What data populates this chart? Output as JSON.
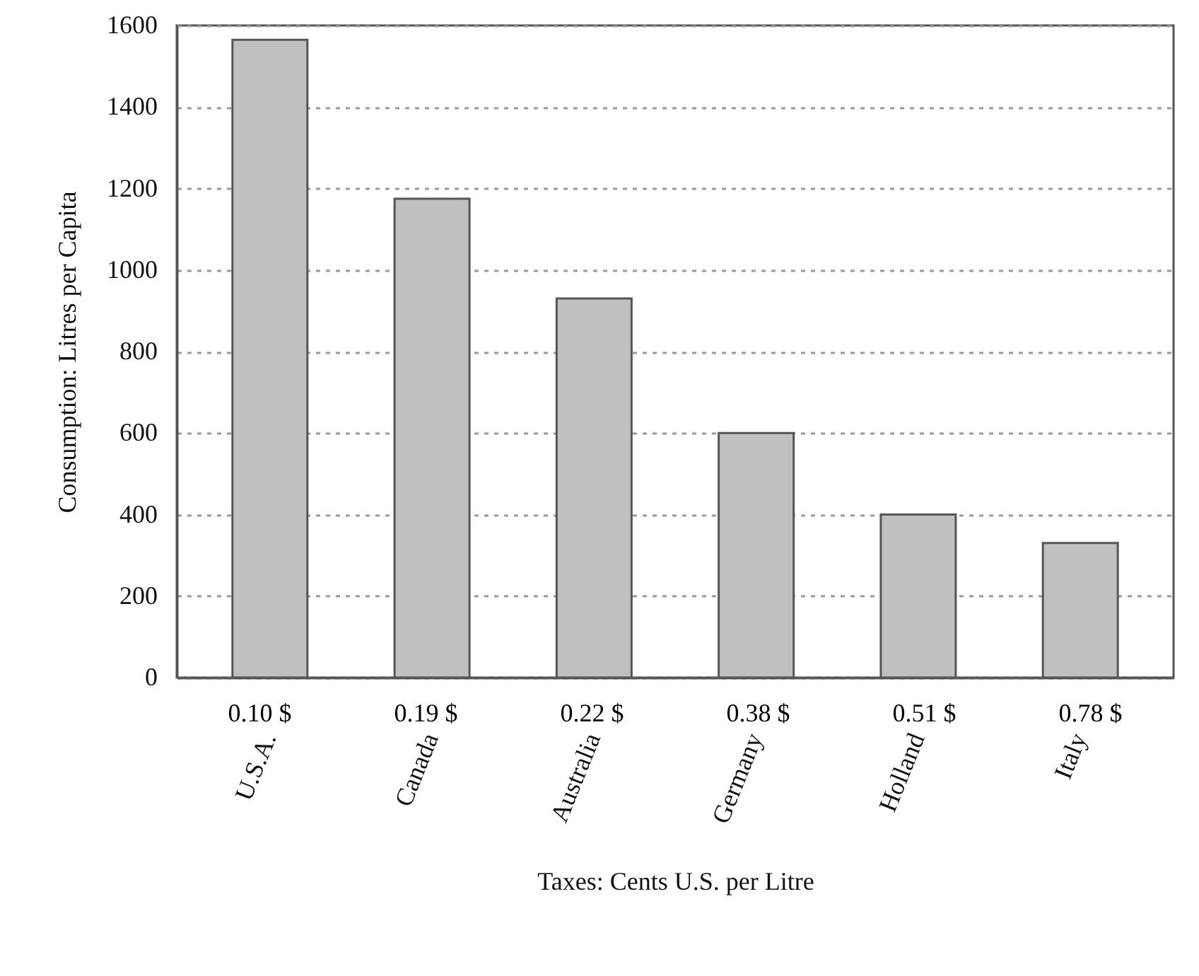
{
  "chart_data": {
    "type": "bar",
    "xlabel": "Taxes: Cents U.S. per Litre",
    "ylabel": "Consumption: Litres per Capita",
    "categories": [
      "U.S.A.",
      "Canada",
      "Australia",
      "Germany",
      "Holland",
      "Italy"
    ],
    "values": [
      1565,
      1175,
      930,
      600,
      400,
      330
    ],
    "color": "#c0c0c0",
    "ylim": [
      0,
      1600
    ],
    "yticks": [
      0,
      200,
      400,
      600,
      800,
      1000,
      1200,
      1400,
      1600
    ],
    "grid": "y",
    "annotations": [
      "0.10  $",
      "0.19 $",
      "0.22 $",
      "0.38 $",
      "0.51 $",
      "0.78 $"
    ]
  }
}
